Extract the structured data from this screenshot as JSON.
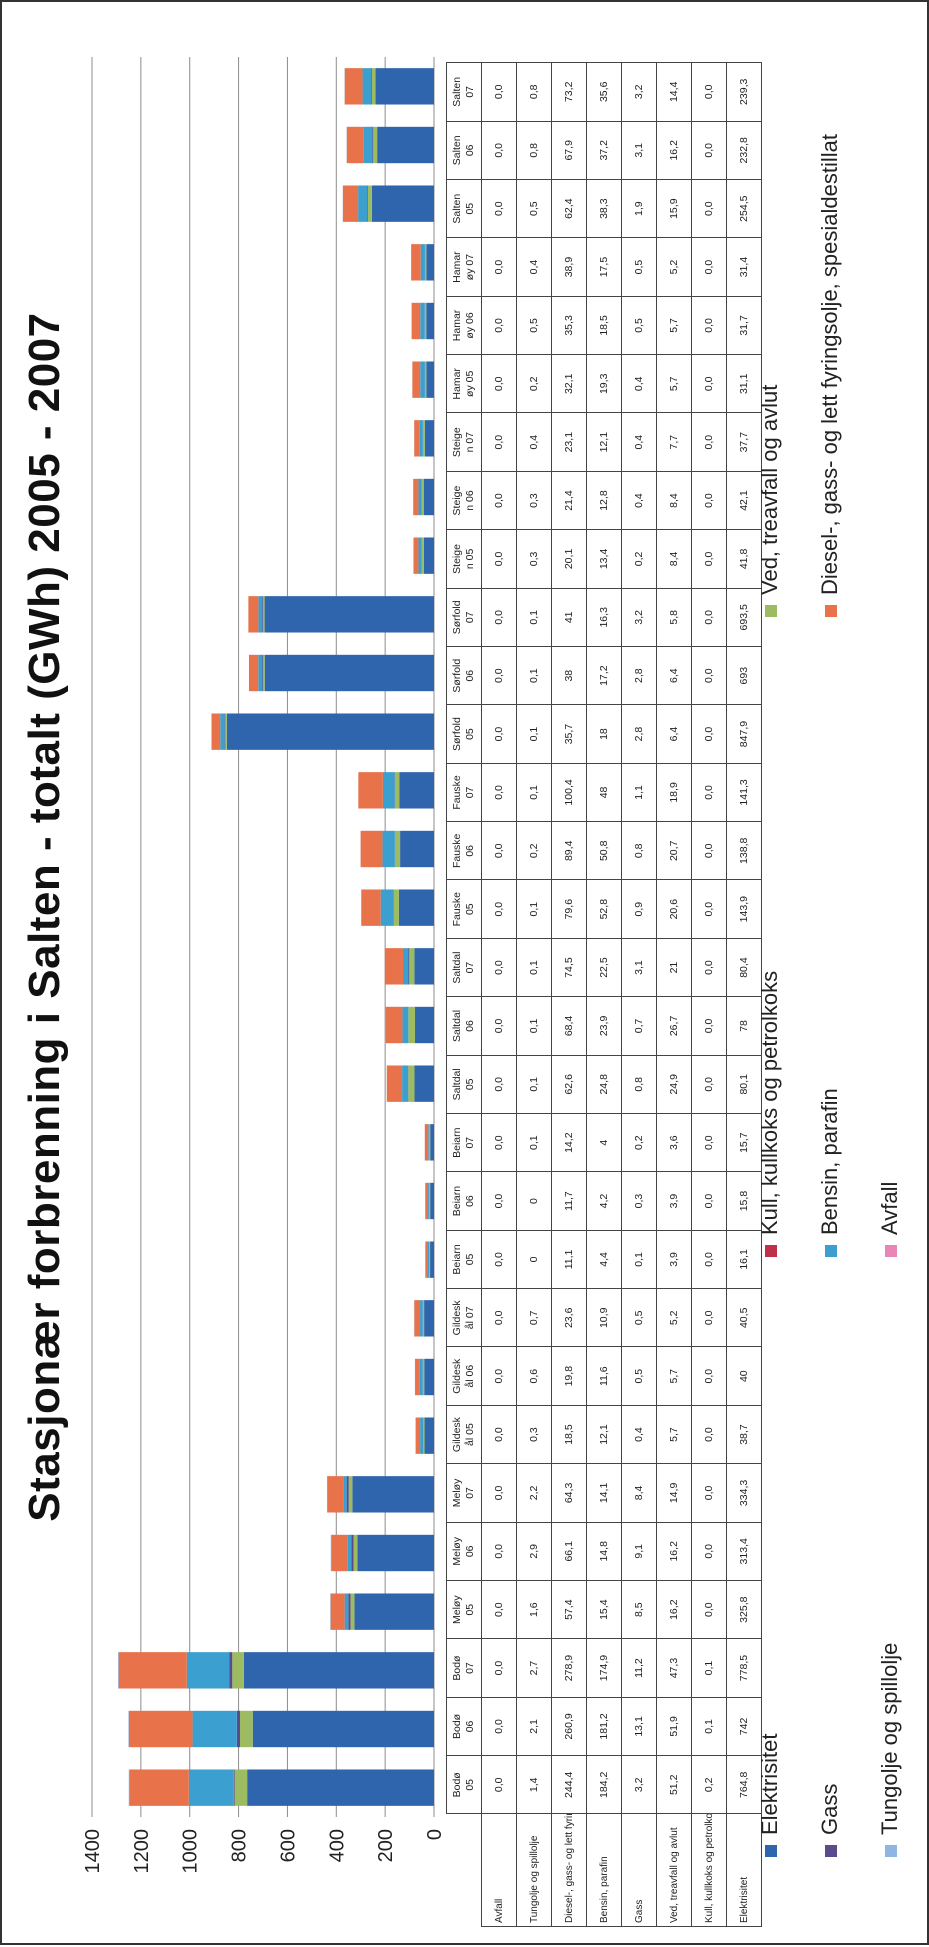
{
  "chart_data": {
    "type": "bar",
    "stacked": true,
    "title": "Stasjonær forbrenning i Salten - totalt (GWh) 2005 - 2007",
    "ylim": [
      0,
      1400
    ],
    "yticks": [
      "0",
      "200",
      "400",
      "600",
      "800",
      "1000",
      "1200",
      "1400"
    ],
    "grid": true,
    "legend_position": "bottom",
    "categories": [
      "Bodø 05",
      "Bodø 06",
      "Bodø 07",
      "Meløy 05",
      "Meløy 06",
      "Meløy 07",
      "Gildeskål 05",
      "Gildeskål 06",
      "Gildeskål 07",
      "Beiarn 05",
      "Beiarn 06",
      "Beiarn 07",
      "Saltdal 05",
      "Saltdal 06",
      "Saltdal 07",
      "Fauske 05",
      "Fauske 06",
      "Fauske 07",
      "Sørfold 05",
      "Sørfold 06",
      "Sørfold 07",
      "Steigen 05",
      "Steigen 06",
      "Steigen 07",
      "Hamarøy 05",
      "Hamarøy 06",
      "Hamarøy 07",
      "Salten 05",
      "Salten 06",
      "Salten 07"
    ],
    "table_headers": [
      "Bodø\n05",
      "Bodø\n06",
      "Bodø\n07",
      "Meløy\n05",
      "Meløy\n06",
      "Meløy\n07",
      "Gildesk\nål 05",
      "Gildesk\nål 06",
      "Gildesk\nål 07",
      "Beiarn\n05",
      "Beiarn\n06",
      "Beiarn\n07",
      "Saltdal\n05",
      "Saltdal\n06",
      "Saltdal\n07",
      "Fauske\n05",
      "Fauske\n06",
      "Fauske\n07",
      "Sørfold\n05",
      "Sørfold\n06",
      "Sørfold\n07",
      "Steige\nn 05",
      "Steige\nn 06",
      "Steige\nn 07",
      "Hamar\nøy 05",
      "Hamar\nøy 06",
      "Hamar\nøy 07",
      "Salten\n05",
      "Salten\n06",
      "Salten\n07"
    ],
    "series": [
      {
        "name": "Avfall",
        "color": "#e985b9",
        "values": [
          0.0,
          0.0,
          0.0,
          0.0,
          0.0,
          0.0,
          0.0,
          0.0,
          0.0,
          0.0,
          0.0,
          0.0,
          0.0,
          0.0,
          0.0,
          0.0,
          0.0,
          0.0,
          0.0,
          0.0,
          0.0,
          0.0,
          0.0,
          0.0,
          0.0,
          0.0,
          0.0,
          0.0,
          0.0,
          0.0
        ],
        "labels": [
          "0,0",
          "0,0",
          "0,0",
          "0,0",
          "0,0",
          "0,0",
          "0,0",
          "0,0",
          "0,0",
          "0,0",
          "0,0",
          "0,0",
          "0,0",
          "0,0",
          "0,0",
          "0,0",
          "0,0",
          "0,0",
          "0,0",
          "0,0",
          "0,0",
          "0,0",
          "0,0",
          "0,0",
          "0,0",
          "0,0",
          "0,0",
          "0,0",
          "0,0",
          "0,0"
        ]
      },
      {
        "name": "Tungolje og spillolje",
        "color": "#8fb5e3",
        "values": [
          1.4,
          2.1,
          2.7,
          1.6,
          2.9,
          2.2,
          0.3,
          0.6,
          0.7,
          0,
          0,
          0.1,
          0.1,
          0.1,
          0.1,
          0.1,
          0.2,
          0.1,
          0.1,
          0.1,
          0.1,
          0.3,
          0.3,
          0.4,
          0.2,
          0.5,
          0.4,
          0.5,
          0.8,
          0.8
        ],
        "labels": [
          "1,4",
          "2,1",
          "2,7",
          "1,6",
          "2,9",
          "2,2",
          "0,3",
          "0,6",
          "0,7",
          "0",
          "0",
          "0,1",
          "0,1",
          "0,1",
          "0,1",
          "0,1",
          "0,2",
          "0,1",
          "0,1",
          "0,1",
          "0,1",
          "0,3",
          "0,3",
          "0,4",
          "0,2",
          "0,5",
          "0,4",
          "0,5",
          "0,8",
          "0,8"
        ]
      },
      {
        "name": "Diesel-, gass- og lett fyringsolje, spesialdestillat",
        "color": "#e8724a",
        "values": [
          244.4,
          260.9,
          278.9,
          57.4,
          66.1,
          64.3,
          18.5,
          19.8,
          23.6,
          11.1,
          11.7,
          14.2,
          62.6,
          68.4,
          74.5,
          79.6,
          89.4,
          100.4,
          35.7,
          38,
          41,
          20.1,
          21.4,
          23.1,
          32.1,
          35.3,
          38.9,
          62.4,
          67.9,
          73.2
        ],
        "labels": [
          "244,4",
          "260,9",
          "278,9",
          "57,4",
          "66,1",
          "64,3",
          "18,5",
          "19,8",
          "23,6",
          "11,1",
          "11,7",
          "14,2",
          "62,6",
          "68,4",
          "74,5",
          "79,6",
          "89,4",
          "100,4",
          "35,7",
          "38",
          "41",
          "20,1",
          "21,4",
          "23,1",
          "32,1",
          "35,3",
          "38,9",
          "62,4",
          "67,9",
          "73,2"
        ]
      },
      {
        "name": "Bensin, parafin",
        "color": "#3b9fcf",
        "values": [
          184.2,
          181.2,
          174.9,
          15.4,
          14.8,
          14.1,
          12.1,
          11.6,
          10.9,
          4.4,
          4.2,
          4,
          24.8,
          23.9,
          22.5,
          52.8,
          50.8,
          48,
          18,
          17.2,
          16.3,
          13.4,
          12.8,
          12.1,
          19.3,
          18.5,
          17.5,
          38.3,
          37.2,
          35.6
        ],
        "labels": [
          "184,2",
          "181,2",
          "174,9",
          "15,4",
          "14,8",
          "14,1",
          "12,1",
          "11,6",
          "10,9",
          "4,4",
          "4,2",
          "4",
          "24,8",
          "23,9",
          "22,5",
          "52,8",
          "50,8",
          "48",
          "18",
          "17,2",
          "16,3",
          "13,4",
          "12,8",
          "12,1",
          "19,3",
          "18,5",
          "17,5",
          "38,3",
          "37,2",
          "35,6"
        ]
      },
      {
        "name": "Gass",
        "color": "#5b4a8c",
        "values": [
          3.2,
          13.1,
          11.2,
          8.5,
          9.1,
          8.4,
          0.4,
          0.5,
          0.5,
          0.1,
          0.3,
          0.2,
          0.8,
          0.7,
          3.1,
          0.9,
          0.8,
          1.1,
          2.8,
          2.8,
          3.2,
          0.2,
          0.4,
          0.4,
          0.4,
          0.5,
          0.5,
          1.9,
          3.1,
          3.2
        ],
        "labels": [
          "3,2",
          "13,1",
          "11,2",
          "8,5",
          "9,1",
          "8,4",
          "0,4",
          "0,5",
          "0,5",
          "0,1",
          "0,3",
          "0,2",
          "0,8",
          "0,7",
          "3,1",
          "0,9",
          "0,8",
          "1,1",
          "2,8",
          "2,8",
          "3,2",
          "0,2",
          "0,4",
          "0,4",
          "0,4",
          "0,5",
          "0,5",
          "1,9",
          "3,1",
          "3,2"
        ]
      },
      {
        "name": "Ved, treavfall og avlut",
        "color": "#9dbb61",
        "values": [
          51.2,
          51.9,
          47.3,
          16.2,
          16.2,
          14.9,
          5.7,
          5.7,
          5.2,
          3.9,
          3.9,
          3.6,
          24.9,
          26.7,
          21,
          20.6,
          20.7,
          18.9,
          6.4,
          6.4,
          5.8,
          8.4,
          8.4,
          7.7,
          5.7,
          5.7,
          5.2,
          15.9,
          16.2,
          14.4
        ],
        "labels": [
          "51,2",
          "51,9",
          "47,3",
          "16,2",
          "16,2",
          "14,9",
          "5,7",
          "5,7",
          "5,2",
          "3,9",
          "3,9",
          "3,6",
          "24,9",
          "26,7",
          "21",
          "20,6",
          "20,7",
          "18,9",
          "6,4",
          "6,4",
          "5,8",
          "8,4",
          "8,4",
          "7,7",
          "5,7",
          "5,7",
          "5,2",
          "15,9",
          "16,2",
          "14,4"
        ]
      },
      {
        "name": "Kull, kullkoks og petrolkoks",
        "color": "#c0304a",
        "values": [
          0.2,
          0.1,
          0.1,
          0.0,
          0.0,
          0.0,
          0.0,
          0.0,
          0.0,
          0.0,
          0.0,
          0.0,
          0.0,
          0.0,
          0.0,
          0.0,
          0.0,
          0.0,
          0.0,
          0.0,
          0.0,
          0.0,
          0.0,
          0.0,
          0.0,
          0.0,
          0.0,
          0.0,
          0.0,
          0.0
        ],
        "labels": [
          "0,2",
          "0,1",
          "0,1",
          "0,0",
          "0,0",
          "0,0",
          "0,0",
          "0,0",
          "0,0",
          "0,0",
          "0,0",
          "0,0",
          "0,0",
          "0,0",
          "0,0",
          "0,0",
          "0,0",
          "0,0",
          "0,0",
          "0,0",
          "0,0",
          "0,0",
          "0,0",
          "0,0",
          "0,0",
          "0,0",
          "0,0",
          "0,0",
          "0,0",
          "0,0"
        ]
      },
      {
        "name": "Elektrisitet",
        "color": "#2e65ad",
        "values": [
          764.8,
          742,
          778.5,
          325.8,
          313.4,
          334.3,
          38.7,
          40,
          40.5,
          16.1,
          15.8,
          15.7,
          80.1,
          78,
          80.4,
          143.9,
          138.8,
          141.3,
          847.9,
          693,
          693.5,
          41.8,
          42.1,
          37.7,
          31.1,
          31.7,
          31.4,
          254.5,
          232.8,
          239.3
        ],
        "labels": [
          "764,8",
          "742",
          "778,5",
          "325,8",
          "313,4",
          "334,3",
          "38,7",
          "40",
          "40,5",
          "16,1",
          "15,8",
          "15,7",
          "80,1",
          "78",
          "80,4",
          "143,9",
          "138,8",
          "141,3",
          "847,9",
          "693",
          "693,5",
          "41,8",
          "42,1",
          "37,7",
          "31,1",
          "31,7",
          "31,4",
          "254,5",
          "232,8",
          "239,3"
        ]
      }
    ],
    "table_row_labels": [
      "Avfall",
      "Tungolje og spillolje",
      "Diesel-, gass- og lett fyringsolje, spesialdestillat",
      "Bensin, parafin",
      "Gass",
      "Ved, treavfall og avlut",
      "Kull, kullkoks og petrolkoks",
      "Elektrisitet"
    ],
    "legend": [
      {
        "name": "Elektrisitet",
        "color": "#2e65ad"
      },
      {
        "name": "Kull, kullkoks og petrolkoks",
        "color": "#c0304a"
      },
      {
        "name": "Ved, treavfall og avlut",
        "color": "#9dbb61"
      },
      {
        "name": "Gass",
        "color": "#5b4a8c"
      },
      {
        "name": "Bensin, parafin",
        "color": "#3b9fcf"
      },
      {
        "name": "Diesel-, gass- og lett fyringsolje, spesialdestillat",
        "color": "#e8724a"
      },
      {
        "name": "Tungolje og spillolje",
        "color": "#8fb5e3"
      },
      {
        "name": "Avfall",
        "color": "#e985b9"
      }
    ]
  }
}
